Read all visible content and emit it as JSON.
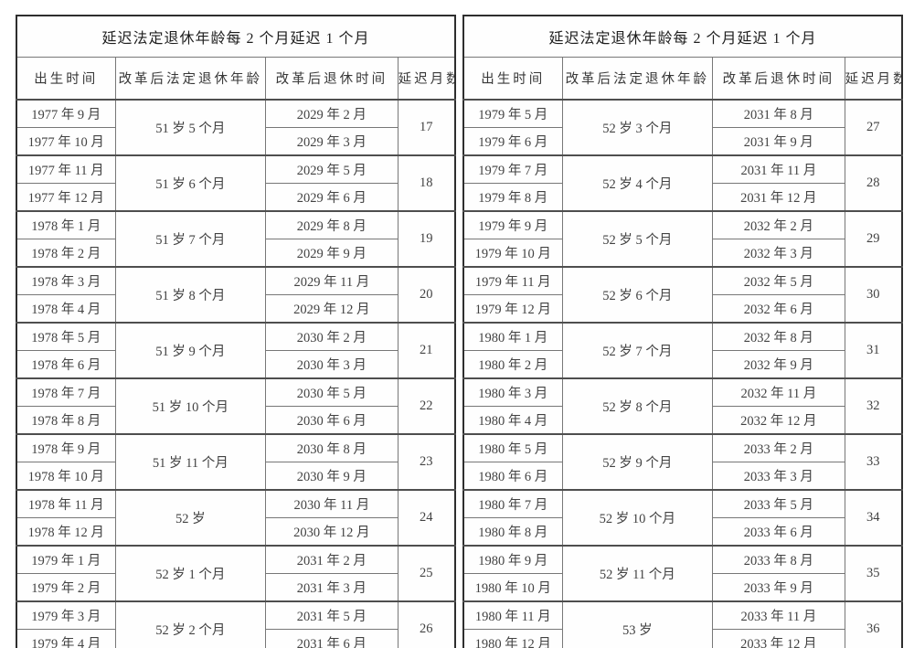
{
  "page": {
    "background": "#ffffff",
    "border_color": "#2e2e2e",
    "grid_color": "#777777",
    "text_color": "#3f3f3f"
  },
  "tables": [
    {
      "title": "延迟法定退休年龄每 2 个月延迟 1 个月",
      "columns": [
        "出生时间",
        "改革后法定退休年龄",
        "改革后退休时间",
        "延迟月数"
      ],
      "groups": [
        {
          "births": [
            "1977 年 9 月",
            "1977 年 10 月"
          ],
          "age": "51 岁 5 个月",
          "retire": [
            "2029 年 2 月",
            "2029 年 3 月"
          ],
          "delay": "17"
        },
        {
          "births": [
            "1977 年 11 月",
            "1977 年 12 月"
          ],
          "age": "51 岁 6 个月",
          "retire": [
            "2029 年 5 月",
            "2029 年 6 月"
          ],
          "delay": "18"
        },
        {
          "births": [
            "1978 年 1 月",
            "1978 年 2 月"
          ],
          "age": "51 岁 7 个月",
          "retire": [
            "2029 年 8 月",
            "2029 年 9 月"
          ],
          "delay": "19"
        },
        {
          "births": [
            "1978 年 3 月",
            "1978 年 4 月"
          ],
          "age": "51 岁 8 个月",
          "retire": [
            "2029 年 11 月",
            "2029 年 12 月"
          ],
          "delay": "20"
        },
        {
          "births": [
            "1978 年 5 月",
            "1978 年 6 月"
          ],
          "age": "51 岁 9 个月",
          "retire": [
            "2030 年 2 月",
            "2030 年 3 月"
          ],
          "delay": "21"
        },
        {
          "births": [
            "1978 年 7 月",
            "1978 年 8 月"
          ],
          "age": "51 岁 10 个月",
          "retire": [
            "2030 年 5 月",
            "2030 年 6 月"
          ],
          "delay": "22"
        },
        {
          "births": [
            "1978 年 9 月",
            "1978 年 10 月"
          ],
          "age": "51 岁 11 个月",
          "retire": [
            "2030 年 8 月",
            "2030 年 9 月"
          ],
          "delay": "23"
        },
        {
          "births": [
            "1978 年 11 月",
            "1978 年 12 月"
          ],
          "age": "52 岁",
          "retire": [
            "2030 年 11 月",
            "2030 年 12 月"
          ],
          "delay": "24"
        },
        {
          "births": [
            "1979 年 1 月",
            "1979 年 2 月"
          ],
          "age": "52 岁 1 个月",
          "retire": [
            "2031 年 2 月",
            "2031 年 3 月"
          ],
          "delay": "25"
        },
        {
          "births": [
            "1979 年 3 月",
            "1979 年 4 月"
          ],
          "age": "52 岁 2 个月",
          "retire": [
            "2031 年 5 月",
            "2031 年 6 月"
          ],
          "delay": "26"
        }
      ]
    },
    {
      "title": "延迟法定退休年龄每 2 个月延迟 1 个月",
      "columns": [
        "出生时间",
        "改革后法定退休年龄",
        "改革后退休时间",
        "延迟月数"
      ],
      "groups": [
        {
          "births": [
            "1979 年 5 月",
            "1979 年 6 月"
          ],
          "age": "52 岁 3 个月",
          "retire": [
            "2031 年 8 月",
            "2031 年 9 月"
          ],
          "delay": "27"
        },
        {
          "births": [
            "1979 年 7 月",
            "1979 年 8 月"
          ],
          "age": "52 岁 4 个月",
          "retire": [
            "2031 年 11 月",
            "2031 年 12 月"
          ],
          "delay": "28"
        },
        {
          "births": [
            "1979 年 9 月",
            "1979 年 10 月"
          ],
          "age": "52 岁 5 个月",
          "retire": [
            "2032 年 2 月",
            "2032 年 3 月"
          ],
          "delay": "29"
        },
        {
          "births": [
            "1979 年 11 月",
            "1979 年 12 月"
          ],
          "age": "52 岁 6 个月",
          "retire": [
            "2032 年 5 月",
            "2032 年 6 月"
          ],
          "delay": "30"
        },
        {
          "births": [
            "1980 年 1 月",
            "1980 年 2 月"
          ],
          "age": "52 岁 7 个月",
          "retire": [
            "2032 年 8 月",
            "2032 年 9 月"
          ],
          "delay": "31"
        },
        {
          "births": [
            "1980 年 3 月",
            "1980 年 4 月"
          ],
          "age": "52 岁 8 个月",
          "retire": [
            "2032 年 11 月",
            "2032 年 12 月"
          ],
          "delay": "32"
        },
        {
          "births": [
            "1980 年 5 月",
            "1980 年 6 月"
          ],
          "age": "52 岁 9 个月",
          "retire": [
            "2033 年 2 月",
            "2033 年 3 月"
          ],
          "delay": "33"
        },
        {
          "births": [
            "1980 年 7 月",
            "1980 年 8 月"
          ],
          "age": "52 岁 10 个月",
          "retire": [
            "2033 年 5 月",
            "2033 年 6 月"
          ],
          "delay": "34"
        },
        {
          "births": [
            "1980 年 9 月",
            "1980 年 10 月"
          ],
          "age": "52 岁 11 个月",
          "retire": [
            "2033 年 8 月",
            "2033 年 9 月"
          ],
          "delay": "35"
        },
        {
          "births": [
            "1980 年 11 月",
            "1980 年 12 月"
          ],
          "age": "53 岁",
          "retire": [
            "2033 年 11 月",
            "2033 年 12 月"
          ],
          "delay": "36"
        }
      ]
    }
  ]
}
